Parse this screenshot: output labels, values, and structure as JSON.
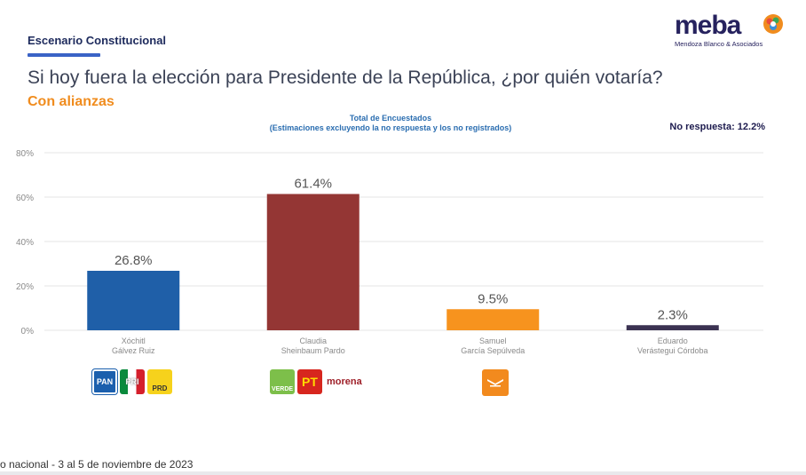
{
  "header": {
    "section": "Escenario Constitucional",
    "question": "Si hoy fuera la elección para Presidente de la República, ¿por quién votaría?",
    "subtitle": "Con alianzas",
    "logo_word": "meba",
    "logo_sub": "Mendoza Blanco & Asociados"
  },
  "chart_title_line1": "Total de Encuestados",
  "chart_title_line2": "(Estimaciones excluyendo la no respuesta y los no registrados)",
  "no_response": "No respuesta: 12.2%",
  "footer": "o nacional - 3 al 5 de noviembre de 2023",
  "party_logos": {
    "xochitl": [
      "PAN",
      "PRI",
      "PRD"
    ],
    "claudia": [
      "VERDE",
      "PT",
      "morena"
    ],
    "samuel": [
      "MC"
    ]
  },
  "chart_data": {
    "type": "bar",
    "title": "Total de Encuestados (Estimaciones excluyendo la no respuesta y los no registrados)",
    "xlabel": "",
    "ylabel": "",
    "categories": [
      "Xóchitl Gálvez Ruiz",
      "Claudia Sheinbaum Pardo",
      "Samuel García Sepúlveda",
      "Eduardo Verástegui Córdoba"
    ],
    "category_lines": [
      [
        "Xóchitl",
        "Gálvez Ruiz"
      ],
      [
        "Claudia",
        "Sheinbaum Pardo"
      ],
      [
        "Samuel",
        "García Sepúlveda"
      ],
      [
        "Eduardo",
        "Verástegui Córdoba"
      ]
    ],
    "values": [
      26.8,
      61.4,
      9.5,
      2.3
    ],
    "data_labels": [
      "26.8%",
      "61.4%",
      "9.5%",
      "2.3%"
    ],
    "colors": [
      "#1f5fa8",
      "#943634",
      "#f7931e",
      "#3b3252"
    ],
    "ylim": [
      0,
      80
    ],
    "yticks": [
      0,
      20,
      40,
      60,
      80
    ],
    "ytick_labels": [
      "0%",
      "20%",
      "40%",
      "60%",
      "80%"
    ],
    "grid": true,
    "legend": "none"
  }
}
